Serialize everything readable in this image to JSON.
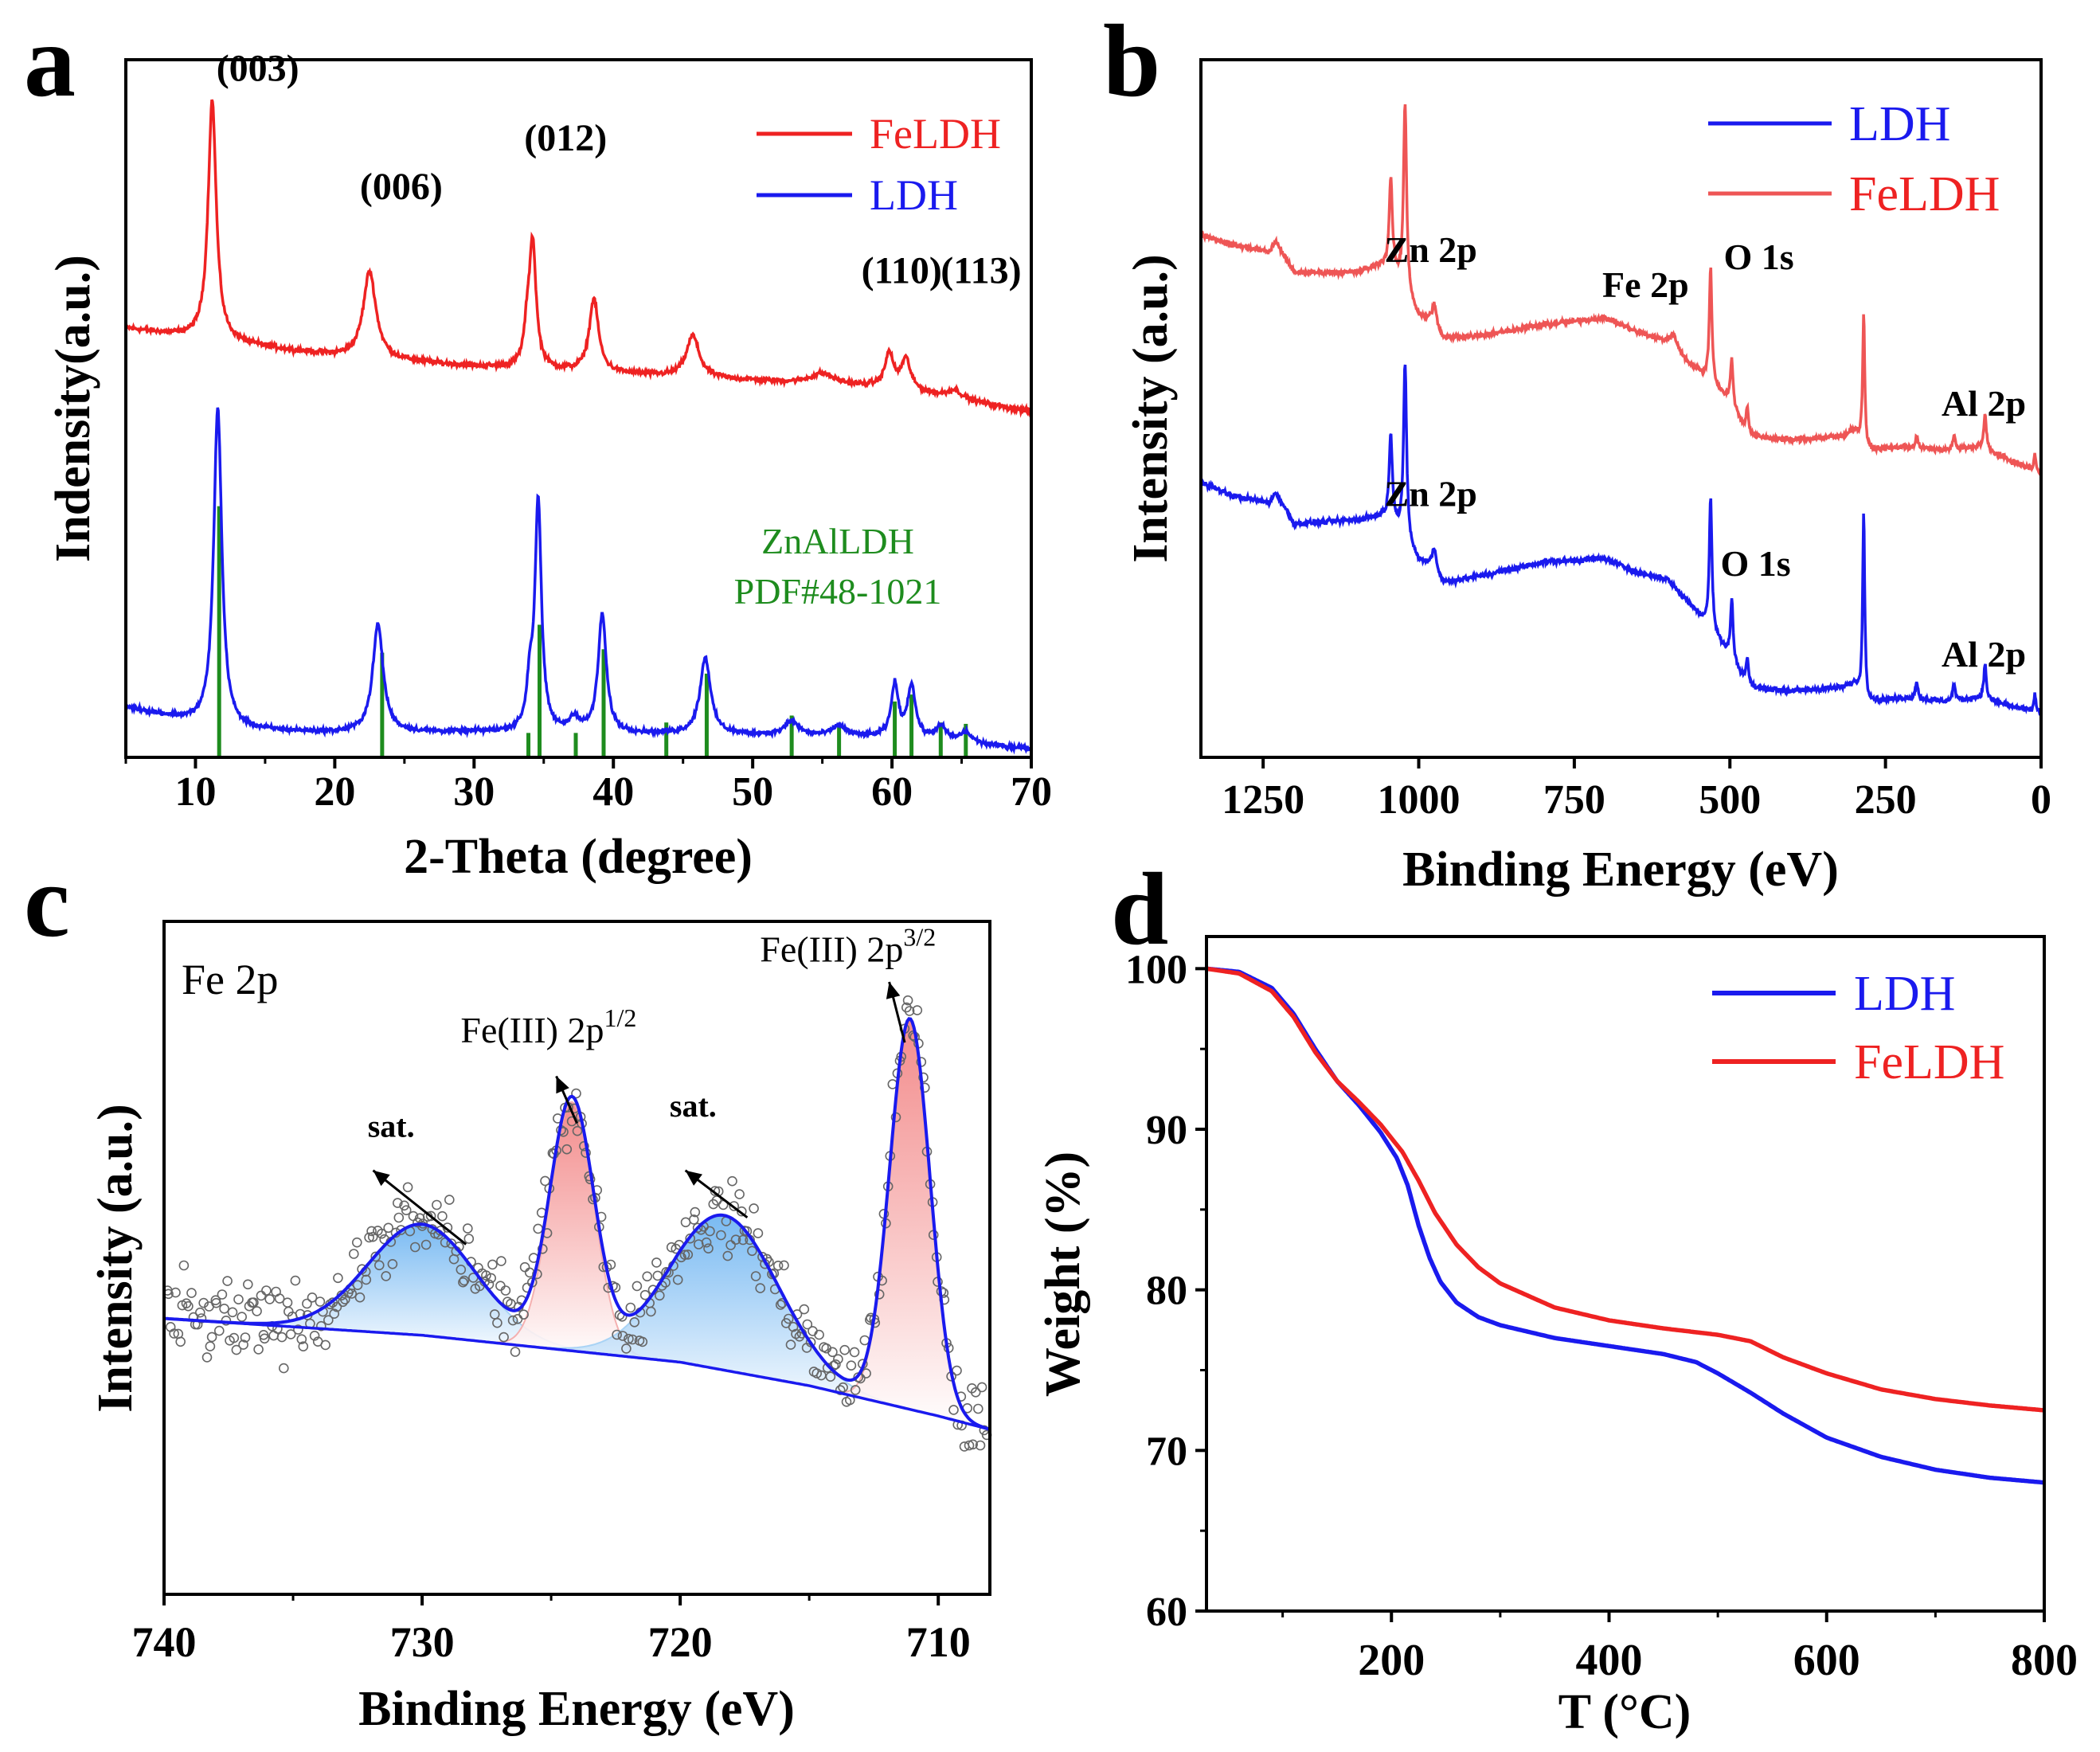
{
  "figure": {
    "panel_labels": [
      "a",
      "b",
      "c",
      "d"
    ]
  },
  "colors": {
    "red": "#ee2222",
    "blue": "#1a1aee",
    "green": "#1e8c1e",
    "xps_red": "#ee5555",
    "blue_fill": "#6fb4ee",
    "red_fill": "#f08c8c",
    "points": "#666666"
  },
  "chart_data": [
    {
      "panel": "a",
      "type": "line",
      "title": "",
      "xlabel": "2-Theta (degree)",
      "ylabel": "Indensity(a.u.)",
      "xlim": [
        5,
        70
      ],
      "ylim": [
        0,
        100
      ],
      "xticks": [
        10,
        20,
        30,
        40,
        50,
        60,
        70
      ],
      "legend": {
        "placement": "top-right",
        "entries": [
          "FeLDH",
          "LDH"
        ]
      },
      "series": [
        {
          "name": "FeLDH",
          "color": "red",
          "baseline": [
            [
              5,
              61.5
            ],
            [
              12,
              59.5
            ],
            [
              20,
              57.5
            ],
            [
              30,
              56.0
            ],
            [
              40,
              55.0
            ],
            [
              50,
              54.0
            ],
            [
              60,
              53.0
            ],
            [
              70,
              49.5
            ]
          ],
          "peaks": [
            {
              "x": 11.2,
              "height": 34.5,
              "width": 0.35
            },
            {
              "x": 22.5,
              "height": 12.5,
              "width": 0.55
            },
            {
              "x": 33.8,
              "height": 4.0,
              "width": 0.25
            },
            {
              "x": 34.2,
              "height": 18.0,
              "width": 0.3
            },
            {
              "x": 38.6,
              "height": 10.5,
              "width": 0.4
            },
            {
              "x": 45.7,
              "height": 6.0,
              "width": 0.55
            },
            {
              "x": 55.0,
              "height": 1.5,
              "width": 1.0
            },
            {
              "x": 59.8,
              "height": 4.8,
              "width": 0.35
            },
            {
              "x": 61.0,
              "height": 4.3,
              "width": 0.4
            },
            {
              "x": 64.5,
              "height": 1.2,
              "width": 0.6
            }
          ],
          "noise": 0.45
        },
        {
          "name": "LDH",
          "color": "blue",
          "baseline": [
            [
              5,
              7.2
            ],
            [
              12,
              4.0
            ],
            [
              20,
              3.5
            ],
            [
              30,
              3.6
            ],
            [
              40,
              3.4
            ],
            [
              50,
              3.2
            ],
            [
              60,
              2.8
            ],
            [
              70,
              1.2
            ]
          ],
          "peaks": [
            {
              "x": 11.6,
              "height": 46.0,
              "width": 0.35
            },
            {
              "x": 23.1,
              "height": 15.5,
              "width": 0.45
            },
            {
              "x": 34.0,
              "height": 6.0,
              "width": 0.25
            },
            {
              "x": 34.6,
              "height": 33.0,
              "width": 0.28
            },
            {
              "x": 37.2,
              "height": 2.0,
              "width": 0.4
            },
            {
              "x": 39.2,
              "height": 17.0,
              "width": 0.35
            },
            {
              "x": 46.6,
              "height": 11.0,
              "width": 0.45
            },
            {
              "x": 52.8,
              "height": 2.0,
              "width": 0.6
            },
            {
              "x": 56.2,
              "height": 1.5,
              "width": 0.6
            },
            {
              "x": 60.2,
              "height": 7.5,
              "width": 0.3
            },
            {
              "x": 61.4,
              "height": 7.5,
              "width": 0.35
            },
            {
              "x": 63.5,
              "height": 2.0,
              "width": 0.5
            },
            {
              "x": 65.3,
              "height": 1.5,
              "width": 0.5
            }
          ],
          "noise": 0.4
        }
      ],
      "reference": {
        "name": "ZnAlLDH",
        "card": "PDF#48-1021",
        "color": "green",
        "lines": [
          {
            "x": 11.7,
            "intensity": 36.0
          },
          {
            "x": 23.4,
            "intensity": 15.0
          },
          {
            "x": 33.9,
            "intensity": 3.5
          },
          {
            "x": 34.7,
            "intensity": 19.0
          },
          {
            "x": 37.3,
            "intensity": 3.5
          },
          {
            "x": 39.3,
            "intensity": 15.5
          },
          {
            "x": 43.8,
            "intensity": 5.0
          },
          {
            "x": 46.7,
            "intensity": 12.0
          },
          {
            "x": 52.8,
            "intensity": 6.0
          },
          {
            "x": 56.2,
            "intensity": 4.8
          },
          {
            "x": 60.2,
            "intensity": 8.0
          },
          {
            "x": 61.4,
            "intensity": 9.0
          },
          {
            "x": 63.5,
            "intensity": 5.0
          },
          {
            "x": 65.3,
            "intensity": 4.8
          }
        ]
      },
      "annotations": [
        {
          "text": "(003)",
          "x": 11.5,
          "y": 97
        },
        {
          "text": "(006)",
          "x": 21.8,
          "y": 80
        },
        {
          "text": "(012)",
          "x": 33.6,
          "y": 87
        },
        {
          "text": "(110)",
          "x": 57.8,
          "y": 68
        },
        {
          "text": "(113)",
          "x": 63.5,
          "y": 68
        }
      ]
    },
    {
      "panel": "b",
      "type": "line",
      "title": "",
      "xlabel": "Binding Energy (eV)",
      "ylabel": "Intensity (a.u.)",
      "xlim": [
        1350,
        0
      ],
      "ylim": [
        0,
        100
      ],
      "xticks": [
        1250,
        1000,
        750,
        500,
        250,
        0
      ],
      "legend": {
        "placement": "top-right",
        "entries": [
          "LDH",
          "FeLDH"
        ]
      },
      "series": [
        {
          "name": "FeLDH",
          "color": "xps_red",
          "baseline": [
            [
              1350,
              75
            ],
            [
              1300,
              73.5
            ],
            [
              1240,
              72.5
            ],
            [
              1230,
              74.0
            ],
            [
              1200,
              69.5
            ],
            [
              1100,
              69.5
            ],
            [
              1060,
              70.5
            ],
            [
              1040,
              69.5
            ],
            [
              1000,
              63.0
            ],
            [
              980,
              62.5
            ],
            [
              960,
              60.0
            ],
            [
              900,
              60.5
            ],
            [
              800,
              62.0
            ],
            [
              700,
              63.0
            ],
            [
              650,
              61.0
            ],
            [
              600,
              59.5
            ],
            [
              560,
              56.0
            ],
            [
              540,
              54.5
            ],
            [
              500,
              51.0
            ],
            [
              470,
              46.0
            ],
            [
              400,
              45.5
            ],
            [
              320,
              46.0
            ],
            [
              300,
              47.0
            ],
            [
              280,
              44.0
            ],
            [
              220,
              44.5
            ],
            [
              150,
              44.0
            ],
            [
              100,
              44.5
            ],
            [
              10,
              41.0
            ],
            [
              0,
              40.5
            ]
          ],
          "peaks": [
            {
              "x": 1045,
              "height": 13.0,
              "width": 3
            },
            {
              "x": 1022,
              "height": 27.0,
              "width": 3
            },
            {
              "x": 975,
              "height": 3.0,
              "width": 4
            },
            {
              "x": 590,
              "height": 2.0,
              "width": 6
            },
            {
              "x": 531,
              "height": 16.5,
              "width": 2.5
            },
            {
              "x": 497,
              "height": 6.5,
              "width": 2.5
            },
            {
              "x": 472,
              "height": 4.0,
              "width": 2.5
            },
            {
              "x": 285,
              "height": 19.0,
              "width": 2.0
            },
            {
              "x": 200,
              "height": 1.5,
              "width": 2.5
            },
            {
              "x": 140,
              "height": 2.0,
              "width": 2.5
            },
            {
              "x": 90,
              "height": 5.0,
              "width": 2.5
            },
            {
              "x": 10,
              "height": 2.5,
              "width": 2.0
            }
          ],
          "noise": 0.45
        },
        {
          "name": "LDH",
          "color": "blue",
          "baseline": [
            [
              1350,
              39.5
            ],
            [
              1300,
              37.5
            ],
            [
              1240,
              36.5
            ],
            [
              1230,
              38.0
            ],
            [
              1200,
              33.5
            ],
            [
              1100,
              34.0
            ],
            [
              1060,
              34.5
            ],
            [
              1040,
              33.5
            ],
            [
              1000,
              28.0
            ],
            [
              980,
              27.5
            ],
            [
              960,
              25.0
            ],
            [
              900,
              26.0
            ],
            [
              800,
              28.0
            ],
            [
              700,
              28.5
            ],
            [
              650,
              26.5
            ],
            [
              600,
              25.5
            ],
            [
              560,
              21.5
            ],
            [
              540,
              19.5
            ],
            [
              500,
              14.5
            ],
            [
              470,
              10.0
            ],
            [
              400,
              9.5
            ],
            [
              320,
              10.0
            ],
            [
              300,
              10.5
            ],
            [
              280,
              8.0
            ],
            [
              220,
              8.5
            ],
            [
              150,
              8.0
            ],
            [
              100,
              8.5
            ],
            [
              10,
              6.5
            ],
            [
              0,
              6.5
            ]
          ],
          "peaks": [
            {
              "x": 1045,
              "height": 12.5,
              "width": 3
            },
            {
              "x": 1022,
              "height": 25.0,
              "width": 3
            },
            {
              "x": 975,
              "height": 3.0,
              "width": 4
            },
            {
              "x": 531,
              "height": 19.0,
              "width": 2.5
            },
            {
              "x": 497,
              "height": 8.5,
              "width": 2.5
            },
            {
              "x": 472,
              "height": 4.0,
              "width": 2.5
            },
            {
              "x": 285,
              "height": 26.5,
              "width": 2.0
            },
            {
              "x": 200,
              "height": 2.5,
              "width": 2.5
            },
            {
              "x": 140,
              "height": 2.5,
              "width": 2.5
            },
            {
              "x": 90,
              "height": 5.0,
              "width": 2.5
            },
            {
              "x": 10,
              "height": 2.5,
              "width": 2.0
            }
          ],
          "noise": 0.45
        }
      ],
      "annotations": [
        {
          "text": "Zn 2p",
          "x": 1055,
          "y": 71
        },
        {
          "text": "Fe 2p",
          "x": 705,
          "y": 66
        },
        {
          "text": "O 1s",
          "x": 510,
          "y": 70
        },
        {
          "text": "Al 2p",
          "x": 160,
          "y": 49
        },
        {
          "text": "Zn 2p",
          "x": 1055,
          "y": 36
        },
        {
          "text": "O 1s",
          "x": 515,
          "y": 26
        },
        {
          "text": "Al 2p",
          "x": 160,
          "y": 13
        }
      ]
    },
    {
      "panel": "c",
      "type": "scatter",
      "title": "Fe 2p",
      "xlabel": "Binding Energy (eV)",
      "ylabel": "Intensity (a.u.)",
      "xlim": [
        740,
        708
      ],
      "ylim": [
        0,
        100
      ],
      "xticks": [
        740,
        730,
        720,
        710
      ],
      "background": [
        [
          740,
          41
        ],
        [
          730,
          38.5
        ],
        [
          725,
          36.5
        ],
        [
          720,
          34.5
        ],
        [
          715,
          31.0
        ],
        [
          710,
          26.5
        ],
        [
          708,
          24.5
        ]
      ],
      "components": [
        {
          "name": "sat.",
          "center": 730.0,
          "height": 16.5,
          "sigma": 2.1,
          "color": "blue_fill"
        },
        {
          "name": "Fe(III) 2p1/2",
          "center": 724.2,
          "height": 37.0,
          "sigma": 0.85,
          "color": "red_fill"
        },
        {
          "name": "sat.",
          "center": 718.3,
          "height": 23.0,
          "sigma": 2.1,
          "color": "blue_fill"
        },
        {
          "name": "Fe(III) 2p3/2",
          "center": 711.1,
          "height": 58.0,
          "sigma": 0.78,
          "color": "red_fill"
        }
      ],
      "scatter_points": 380,
      "scatter_noise": 6.5,
      "annotations": [
        {
          "text": "sat.",
          "x": 731.2,
          "y": 68
        },
        {
          "text": "Fe(III) 2p",
          "sup": "1/2",
          "x": 725.1,
          "y": 82
        },
        {
          "text": "sat.",
          "x": 719.5,
          "y": 71
        },
        {
          "text": "Fe(III) 2p",
          "sup": "3/2",
          "x": 713.5,
          "y": 94
        }
      ],
      "arrows": [
        {
          "from": [
            728.3,
            52
          ],
          "to": [
            731.9,
            63
          ]
        },
        {
          "from": [
            724.0,
            70
          ],
          "to": [
            724.8,
            77
          ]
        },
        {
          "from": [
            717.4,
            56
          ],
          "to": [
            719.8,
            63
          ]
        },
        {
          "from": [
            711.3,
            82
          ],
          "to": [
            711.9,
            91
          ]
        }
      ]
    },
    {
      "panel": "d",
      "type": "line",
      "title": "",
      "xlabel": "T (°C)",
      "ylabel": "Weight (%)",
      "xlim": [
        30,
        800
      ],
      "ylim": [
        60,
        102
      ],
      "yticks": [
        60,
        70,
        80,
        90,
        100
      ],
      "xticks": [
        200,
        400,
        600,
        800
      ],
      "legend": {
        "placement": "top-right",
        "entries": [
          "LDH",
          "FeLDH"
        ]
      },
      "series": [
        {
          "name": "LDH",
          "color": "blue",
          "x": [
            30,
            60,
            90,
            110,
            130,
            150,
            170,
            190,
            205,
            215,
            225,
            235,
            245,
            260,
            280,
            300,
            350,
            400,
            450,
            480,
            500,
            530,
            560,
            600,
            650,
            700,
            750,
            800
          ],
          "y": [
            100.0,
            99.8,
            98.8,
            97.2,
            95.0,
            93.0,
            91.5,
            89.8,
            88.2,
            86.5,
            84.0,
            82.0,
            80.5,
            79.2,
            78.3,
            77.8,
            77.0,
            76.5,
            76.0,
            75.5,
            74.8,
            73.6,
            72.3,
            70.8,
            69.6,
            68.8,
            68.3,
            68.0
          ]
        },
        {
          "name": "FeLDH",
          "color": "red",
          "x": [
            30,
            60,
            90,
            110,
            130,
            150,
            170,
            190,
            210,
            225,
            240,
            260,
            280,
            300,
            350,
            400,
            450,
            500,
            530,
            560,
            600,
            650,
            700,
            750,
            800
          ],
          "y": [
            100.0,
            99.7,
            98.6,
            97.0,
            94.8,
            93.0,
            91.7,
            90.3,
            88.6,
            86.8,
            84.8,
            82.8,
            81.4,
            80.4,
            78.9,
            78.1,
            77.6,
            77.2,
            76.8,
            75.8,
            74.8,
            73.8,
            73.2,
            72.8,
            72.5
          ]
        }
      ]
    }
  ]
}
